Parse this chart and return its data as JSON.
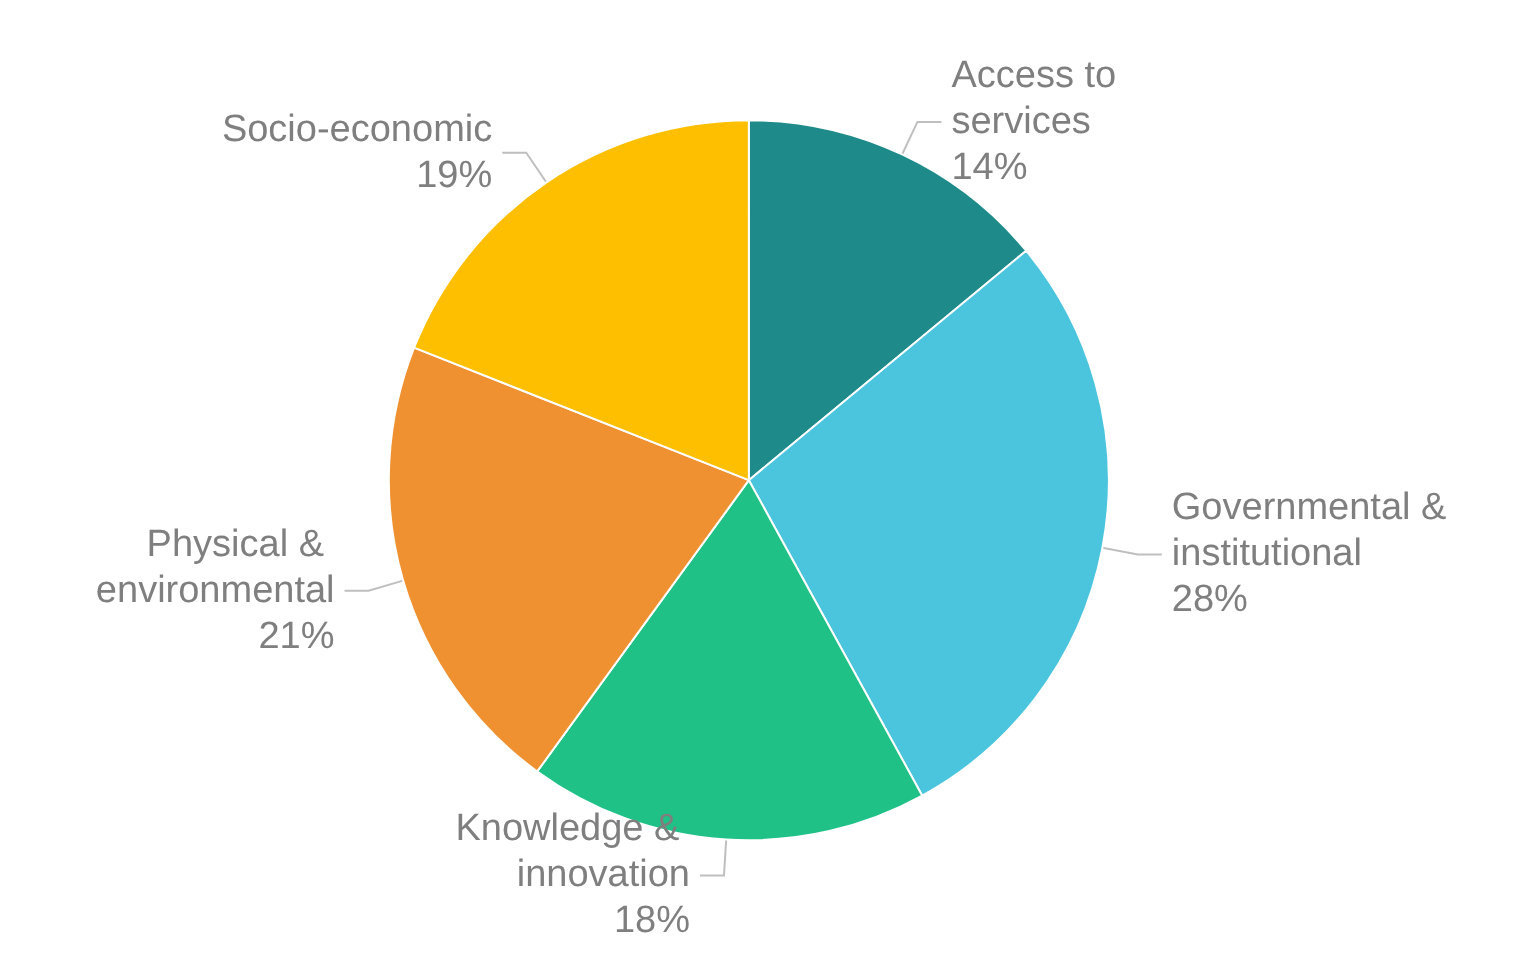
{
  "chart_data": {
    "type": "pie",
    "categories": [
      "Access to services",
      "Governmental & institutional",
      "Knowledge & innovation",
      "Physical & environmental",
      "Socio-economic"
    ],
    "values": [
      14,
      28,
      18,
      21,
      19
    ],
    "value_labels": [
      "14%",
      "28%",
      "18%",
      "21%",
      "19%"
    ],
    "colors": [
      "#1e8a8a",
      "#4bc5de",
      "#20c187",
      "#ef9131",
      "#fdbf00"
    ],
    "legend": false
  }
}
